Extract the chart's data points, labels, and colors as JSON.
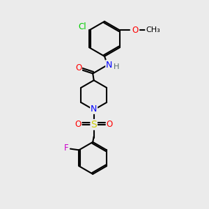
{
  "bg_color": "#ebebeb",
  "atom_colors": {
    "C": "#000000",
    "N": "#0000ff",
    "O": "#ff0000",
    "S": "#cccc00",
    "Cl": "#00cc00",
    "F": "#cc00cc",
    "H": "#556b6b"
  },
  "bond_color": "#000000",
  "bond_width": 1.5,
  "font_size": 8.5
}
